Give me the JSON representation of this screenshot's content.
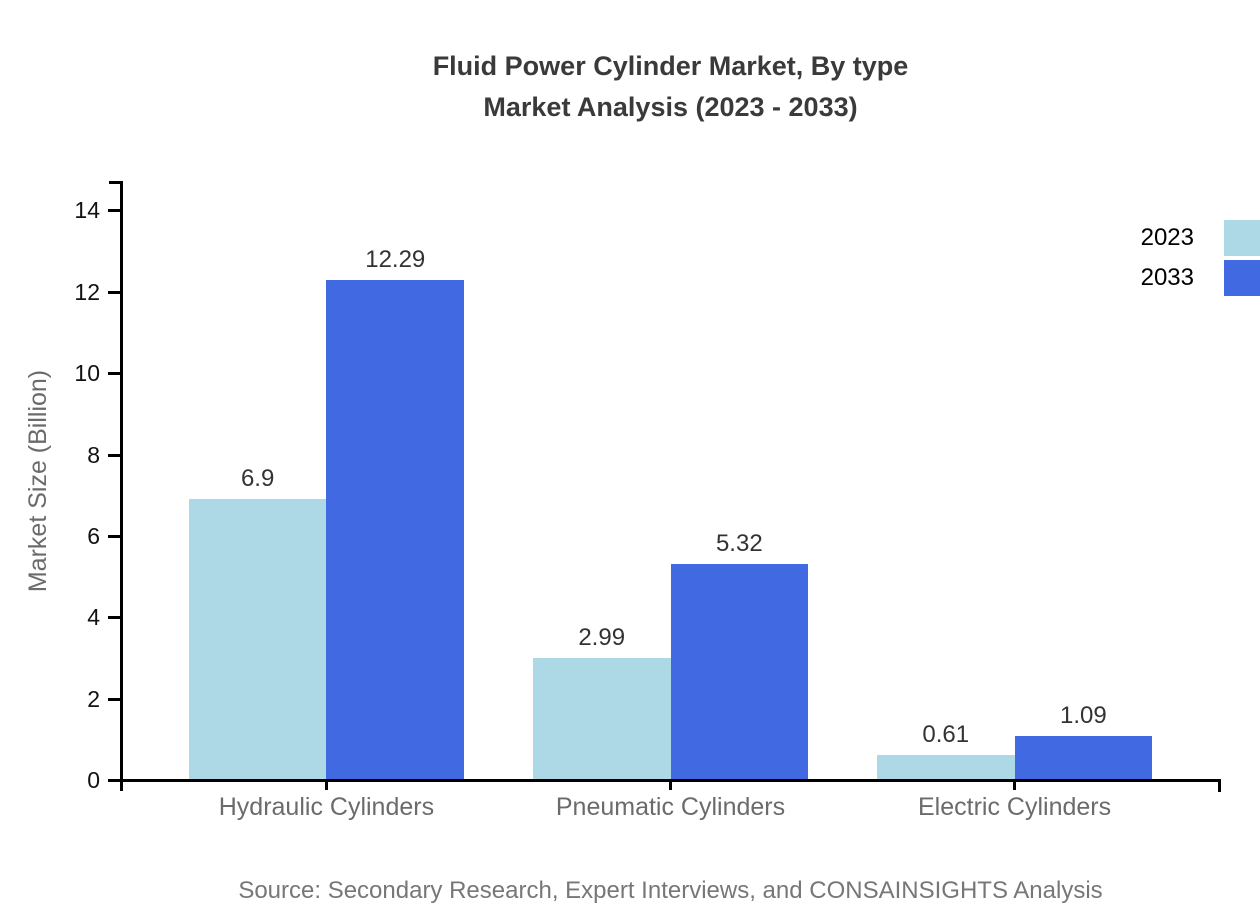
{
  "title": {
    "line1": "Fluid Power Cylinder Market, By type",
    "line2": "Market Analysis (2023 - 2033)"
  },
  "source": "Source: Secondary Research, Expert Interviews, and CONSAINSIGHTS Analysis",
  "chart_data": {
    "type": "bar",
    "title": "Fluid Power Cylinder Market, By type Market Analysis (2023 - 2033)",
    "categories": [
      "Hydraulic Cylinders",
      "Pneumatic Cylinders",
      "Electric Cylinders"
    ],
    "series": [
      {
        "name": "2023",
        "color": "#ADD8E6",
        "values": [
          6.9,
          2.99,
          0.61
        ],
        "labels": [
          "6.9",
          "2.99",
          "0.61"
        ]
      },
      {
        "name": "2033",
        "color": "#4169E1",
        "values": [
          12.29,
          5.32,
          1.09
        ],
        "labels": [
          "12.29",
          "5.32",
          "1.09"
        ]
      }
    ],
    "xlabel": "",
    "ylabel": "Market Size (Billion)",
    "yticks": [
      0,
      2,
      4,
      6,
      8,
      10,
      12,
      14
    ],
    "ylim": [
      0,
      14.7
    ],
    "grid": false,
    "value_labels": true,
    "legend_position": "top-right",
    "axis_color": "#000000",
    "tick_label_color": "#111111",
    "category_label_color": "#6b6b6b",
    "value_label_color": "#333333"
  }
}
